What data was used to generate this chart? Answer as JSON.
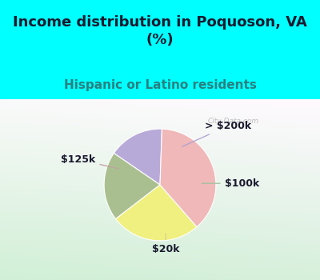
{
  "title": "Income distribution in Poquoson, VA\n(%)",
  "subtitle": "Hispanic or Latino residents",
  "title_color": "#1a1a2e",
  "subtitle_color": "#2a8080",
  "bg_color": "#00ffff",
  "slices": [
    {
      "label": "> $200k",
      "value": 16,
      "color": "#b8aad8"
    },
    {
      "label": "$100k",
      "value": 20,
      "color": "#aabf90"
    },
    {
      "label": "$20k",
      "value": 26,
      "color": "#f0f080"
    },
    {
      "label": "$125k",
      "value": 38,
      "color": "#f0b8b8"
    }
  ],
  "label_fontsize": 9,
  "title_fontsize": 13,
  "subtitle_fontsize": 11,
  "watermark": "City-Data.com",
  "startangle": 88,
  "label_color": "#1a1a2e"
}
